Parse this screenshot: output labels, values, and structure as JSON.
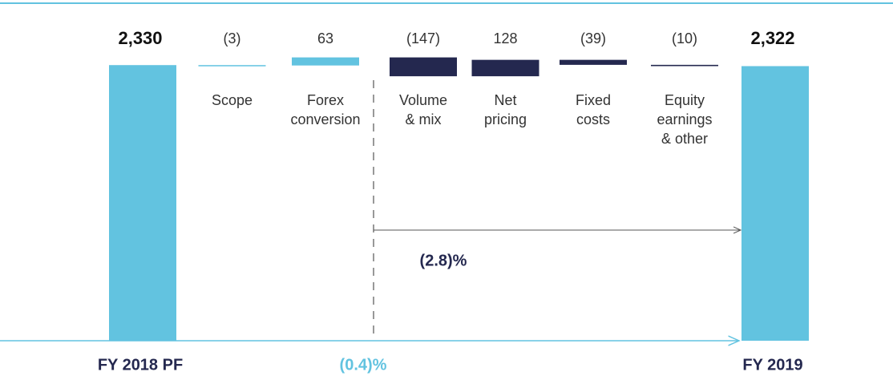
{
  "chart_data": {
    "type": "waterfall",
    "categories": [
      "FY 2018 PF",
      "Scope",
      "Forex\nconversion",
      "Volume\n& mix",
      "Net\npricing",
      "Fixed\ncosts",
      "Equity\nearnings\n& other",
      "FY 2019"
    ],
    "measure": [
      "total",
      "relative",
      "relative",
      "relative",
      "relative",
      "relative",
      "relative",
      "total"
    ],
    "values": [
      2330,
      -3,
      63,
      -147,
      128,
      -39,
      -10,
      2322
    ],
    "value_labels": [
      "2,330",
      "(3)",
      "63",
      "(147)",
      "128",
      "(39)",
      "(10)",
      "2,322"
    ],
    "colors": [
      "#62c3e0",
      "#62c3e0",
      "#62c3e0",
      "#24284f",
      "#24284f",
      "#24284f",
      "#24284f",
      "#62c3e0"
    ],
    "ylim": [
      2200,
      2400
    ],
    "annotations": [
      "(2.8)%",
      "(0.4)%"
    ]
  }
}
